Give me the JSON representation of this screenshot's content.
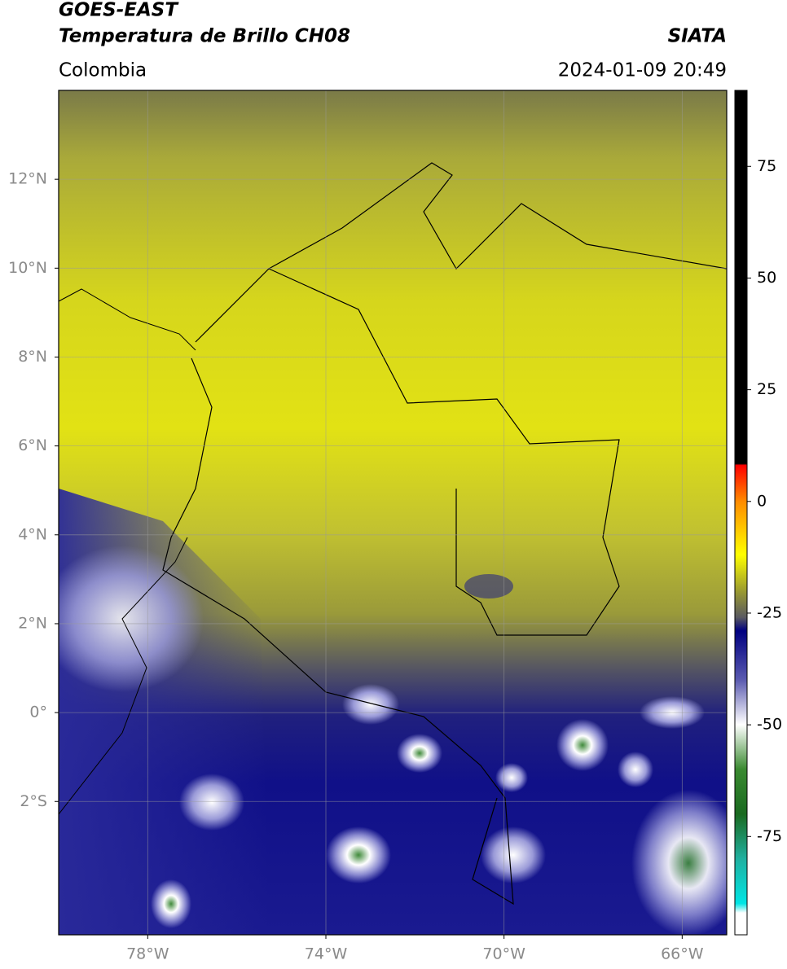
{
  "header": {
    "satellite": "GOES-EAST",
    "product": "Temperatura de Brillo CH08",
    "region": "Colombia",
    "source": "SIATA",
    "datetime": "2024-01-09 20:49"
  },
  "map": {
    "lonlim": [
      -80,
      -65
    ],
    "latlim": [
      -5,
      14
    ],
    "lon_ticks": [
      {
        "value": -78,
        "label": "78°W"
      },
      {
        "value": -74,
        "label": "74°W"
      },
      {
        "value": -70,
        "label": "70°W"
      },
      {
        "value": -66,
        "label": "66°W"
      }
    ],
    "lat_ticks": [
      {
        "value": 12,
        "label": "12°N"
      },
      {
        "value": 10,
        "label": "10°N"
      },
      {
        "value": 8,
        "label": "8°N"
      },
      {
        "value": 6,
        "label": "6°N"
      },
      {
        "value": 4,
        "label": "4°N"
      },
      {
        "value": 2,
        "label": "2°N"
      },
      {
        "value": 0,
        "label": "0°"
      },
      {
        "value": -2,
        "label": "2°S"
      }
    ],
    "grid": true
  },
  "colorbar": {
    "lim": [
      -97,
      92
    ],
    "ticks": [
      75,
      50,
      25,
      0,
      -25,
      -50,
      -75
    ]
  }
}
